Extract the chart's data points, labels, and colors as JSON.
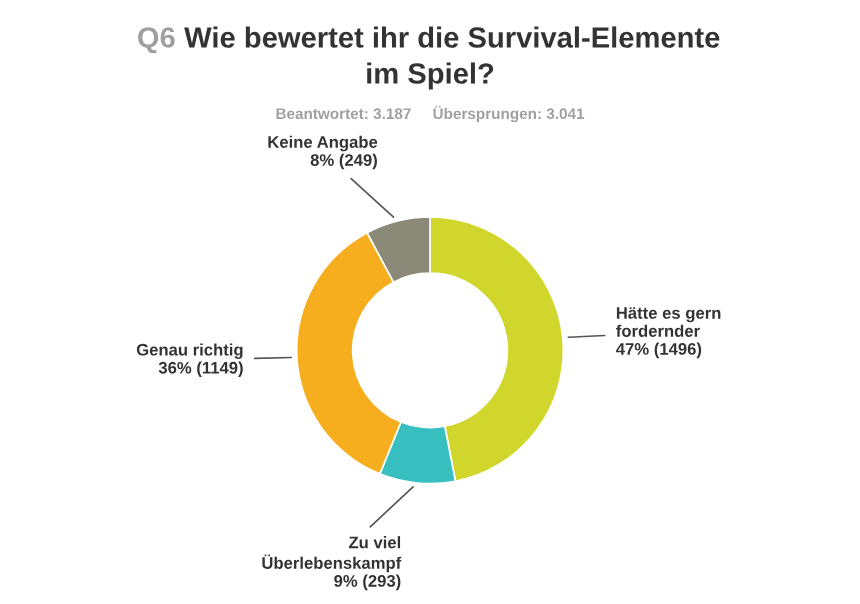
{
  "chart_data": {
    "type": "donut",
    "title": "Q6 Wie bewertet ihr die Survival-Elemente\nim Spiel?",
    "subtitle": "Beantwortet: 3.187     Übersprungen: 3.041",
    "categories": [
      "Hätte es gern\nfordernder",
      "Zu viel\nÜberlebenskampf",
      "Genau richtig",
      "Keine Angabe"
    ],
    "values": [
      1496,
      293,
      1149,
      249
    ],
    "value_labels": [
      "47% (1496)",
      "9% (293)",
      "36% (1149)",
      "8% (249)"
    ],
    "colors": [
      "#d1d62c",
      "#38c0c0",
      "#f6ae1f",
      "#8b8a78"
    ],
    "legend": false
  }
}
